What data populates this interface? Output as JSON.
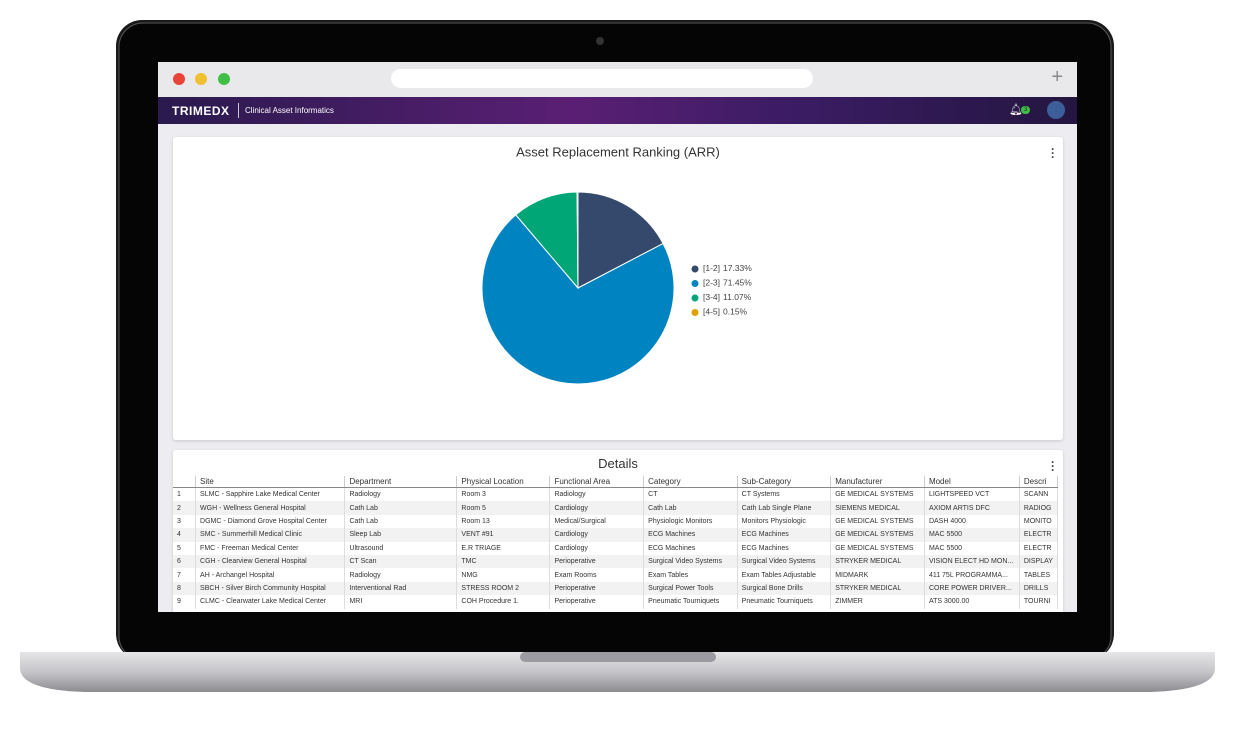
{
  "app": {
    "brand": "TRIMEDX",
    "section": "Clinical Asset Informatics",
    "notification_count": 3
  },
  "chart_data": {
    "type": "pie",
    "title": "Asset Replacement Ranking (ARR)",
    "categories": [
      "[1-2]",
      "[2-3]",
      "[3-4]",
      "[4-5]"
    ],
    "values": [
      17.33,
      71.45,
      11.07,
      0.15
    ],
    "value_labels": [
      "17.33%",
      "71.45%",
      "11.07%",
      "0.15%"
    ],
    "colors": [
      "#34496b",
      "#0084c1",
      "#00a676",
      "#e0a100"
    ],
    "legend": "right"
  },
  "details": {
    "title": "Details",
    "columns": [
      "Site",
      "Department",
      "Physical Location",
      "Functional Area",
      "Category",
      "Sub-Category",
      "Manufacturer",
      "Model",
      "Descri"
    ],
    "rows": [
      [
        1,
        "SLMC - Sapphire Lake Medical Center",
        "Radiology",
        "Room 3",
        "Radiology",
        "CT",
        "CT Systems",
        "GE MEDICAL SYSTEMS",
        "LIGHTSPEED VCT",
        "SCANN"
      ],
      [
        2,
        "WGH - Wellness General Hospital",
        "Cath Lab",
        "Room 5",
        "Cardiology",
        "Cath Lab",
        "Cath Lab Single Plane",
        "SIEMENS MEDICAL",
        "AXIOM ARTIS DFC",
        "RADIOG"
      ],
      [
        3,
        "DGMC - Diamond Grove Hospital Center",
        "Cath Lab",
        "Room 13",
        "Medical/Surgical",
        "Physiologic Monitors",
        "Monitors Physiologic",
        "GE MEDICAL SYSTEMS",
        "DASH 4000",
        "MONITO"
      ],
      [
        4,
        "SMC - Summerhill Medical Clinic",
        "Sleep Lab",
        "VENT #91",
        "Cardiology",
        "ECG Machines",
        "ECG Machines",
        "GE MEDICAL SYSTEMS",
        "MAC 5500",
        "ELECTR"
      ],
      [
        5,
        "FMC - Freeman Medical Center",
        "Ultrasound",
        "E.R TRIAGE",
        "Cardiology",
        "ECG Machines",
        "ECG Machines",
        "GE MEDICAL SYSTEMS",
        "MAC 5500",
        "ELECTR"
      ],
      [
        6,
        "CGH - Clearview General Hospital",
        "CT Scan",
        "TMC",
        "Perioperative",
        "Surgical Video Systems",
        "Surgical Video Systems",
        "STRYKER MEDICAL",
        "VISION ELECT HD MON...",
        "DISPLAY"
      ],
      [
        7,
        "AH - Archangel Hospital",
        "Radiology",
        "NMG",
        "Exam Rooms",
        "Exam Tables",
        "Exam Tables Adjustable",
        "MIDMARK",
        "411 75L PROGRAMMA...",
        "TABLES"
      ],
      [
        8,
        "SBCH - Silver Birch Community Hospital",
        "Interventional Rad",
        "STRESS ROOM 2",
        "Perioperative",
        "Surgical Power Tools",
        "Surgical Bone Drills",
        "STRYKER MEDICAL",
        "CORE POWER DRIVER...",
        "DRILLS"
      ],
      [
        9,
        "CLMC - Clearwater Lake Medical Center",
        "MRI",
        "COH Procedure 1.",
        "Perioperative",
        "Pneumatic Tourniquets",
        "Pneumatic Tourniquets",
        "ZIMMER",
        "ATS 3000.00",
        "TOURNI"
      ]
    ]
  }
}
